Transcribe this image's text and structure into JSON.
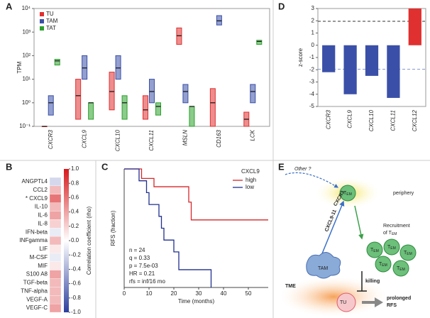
{
  "panels": [
    "A",
    "B",
    "C",
    "D",
    "E"
  ],
  "chart_data": [
    {
      "type": "box",
      "y_label": "TPM",
      "log_y": true,
      "categories": [
        "CXCR3",
        "CXCL9",
        "CXCL10",
        "CXCL11",
        "MSLN",
        "CD163",
        "LCK"
      ],
      "ylim": [
        0.1,
        10000
      ],
      "yticks": [
        {
          "value": 0.1,
          "label": "10⁻¹"
        },
        {
          "value": 1,
          "label": "10⁰"
        },
        {
          "value": 10,
          "label": "10¹"
        },
        {
          "value": 100,
          "label": "10²"
        },
        {
          "value": 1000,
          "label": "10³"
        },
        {
          "value": 10000,
          "label": "10⁴"
        }
      ],
      "series": [
        {
          "name": "TU",
          "color": "#e03030",
          "values": [
            0.1,
            2,
            3,
            0.5,
            700,
            1,
            0.2
          ],
          "q1": [
            0.1,
            0.2,
            0.5,
            0.2,
            300,
            0.1,
            0.1
          ],
          "q3": [
            0.1,
            10,
            20,
            2,
            1500,
            4,
            0.4
          ]
        },
        {
          "name": "TAM",
          "color": "#3a50a8",
          "values": [
            1,
            30,
            30,
            3,
            3,
            3000,
            3
          ],
          "q1": [
            0.3,
            10,
            10,
            1,
            1,
            2000,
            1
          ],
          "q3": [
            2,
            100,
            100,
            10,
            6,
            5000,
            6
          ]
        },
        {
          "name": "TAT",
          "color": "#2ca02c",
          "values": [
            60,
            1,
            1,
            0.7,
            0.7,
            null,
            400
          ],
          "q1": [
            40,
            0.2,
            0.2,
            0.3,
            0.1,
            null,
            300
          ],
          "q3": [
            70,
            1,
            2,
            1,
            0.7,
            null,
            450
          ]
        }
      ]
    },
    {
      "type": "heatmap",
      "colorbar_label": "Correlation coefficient (rho)",
      "categories": [
        "ANGPTL4",
        "CCL2",
        "* CXCL9",
        "IL-10",
        "IL-6",
        "IL-8",
        "IFN-beta",
        "INFgamma",
        "LIF",
        "M-CSF",
        "MIF",
        "S100 A8",
        "TGF-beta",
        "TNF-alpha",
        "VEGF-A",
        "VEGF-C"
      ],
      "values": [
        -0.2,
        0.3,
        0.6,
        0.3,
        0.4,
        0.2,
        -0.1,
        0.3,
        0.1,
        -0.1,
        0.1,
        0.4,
        0.3,
        0.3,
        0.3,
        0.4
      ],
      "vlim": [
        -1,
        1
      ],
      "ticks": [
        {
          "value": 1,
          "label": "1.0"
        },
        0.8,
        0.6,
        0.4,
        0.2,
        {
          "value": 0,
          "label": "0.0"
        },
        -0.2,
        -0.4,
        -0.6,
        -0.8,
        {
          "value": -1,
          "label": "-1.0"
        }
      ],
      "colors": [
        "#2c3e9e",
        "#ffffff",
        "#d7191c"
      ]
    },
    {
      "type": "step",
      "x_label": "Time (months)",
      "y_label": "RFS (fraction)",
      "legend_title": "CXCL9",
      "xlim": [
        0,
        58
      ],
      "ylim": [
        0,
        1
      ],
      "xticks": [
        0,
        10,
        20,
        30,
        40,
        50
      ],
      "series": [
        {
          "name": "high",
          "color": "#d62728",
          "x": [
            0,
            7,
            12,
            26,
            27,
            58
          ],
          "values": [
            1,
            0.92,
            0.85,
            0.72,
            0.57,
            0.57
          ]
        },
        {
          "name": "low",
          "color": "#1f2f8f",
          "x": [
            0,
            6,
            9,
            10,
            14,
            15,
            16,
            20,
            22,
            35
          ],
          "values": [
            1,
            0.9,
            0.8,
            0.7,
            0.6,
            0.5,
            0.4,
            0.3,
            0.15,
            0
          ]
        }
      ],
      "annotations": [
        "n = 24",
        "q = 0.33",
        "p = 7.5e-03",
        "HR = 0.21",
        "rfs = inf/16 mo"
      ]
    },
    {
      "type": "bar",
      "y_label": "z-score",
      "categories": [
        "CXCR3",
        "CXCL9",
        "CXCL10",
        "CXCL11",
        "CXCL12"
      ],
      "values": [
        -2.2,
        -4,
        -2.5,
        -4.3,
        3
      ],
      "colors": [
        "#3a4fa8",
        "#3a4fa8",
        "#3a4fa8",
        "#3a4fa8",
        "#e03030"
      ],
      "ylim": [
        -5,
        3
      ],
      "yticks": [
        -5,
        -4,
        -3,
        -2,
        -1,
        0,
        1,
        2,
        3
      ],
      "reference_lines": [
        1.96,
        -1.96
      ]
    }
  ],
  "diagram": {
    "other": "Other ?",
    "t": "T",
    "em": "EM",
    "periphery": "periphery",
    "cxcr3": "CXCR3",
    "cxcl": "CXCL9-11",
    "recruitment": "Recruitment",
    "of": "of ",
    "tam": "TAM",
    "tme": "TME",
    "killing": "killing",
    "tu": "TU",
    "outcome": [
      "prolonged",
      "RFS"
    ]
  }
}
